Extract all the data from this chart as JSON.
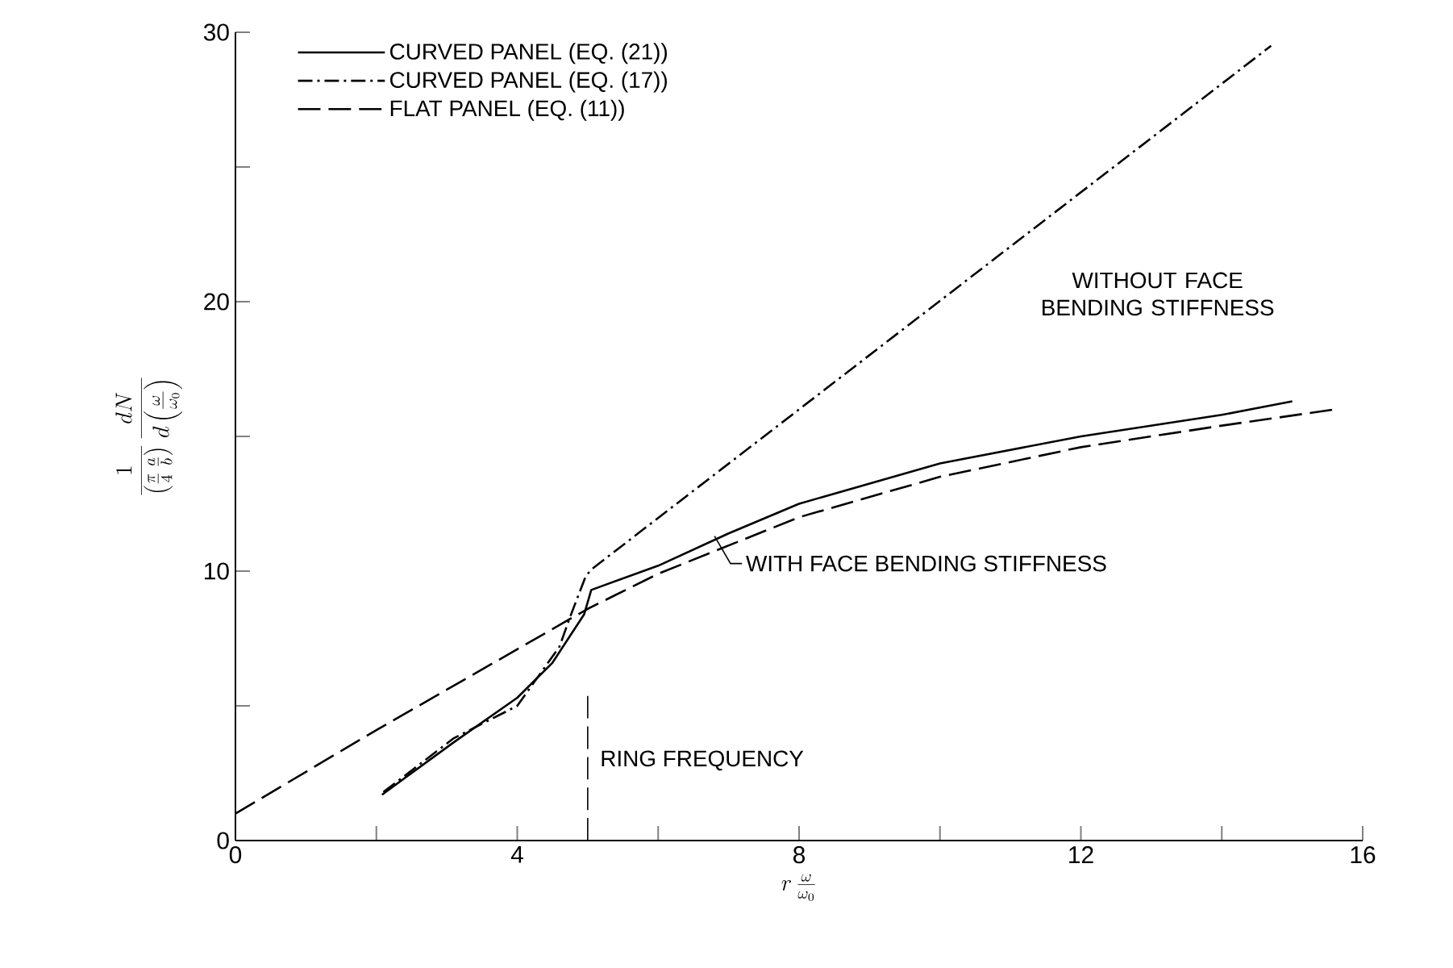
{
  "chart_data": {
    "type": "line",
    "xlabel": "r\\,\\frac{\\omega}{\\omega_0}",
    "ylabel": "\\frac{1}{\\left(\\frac{\\pi}{4}\\,\\frac{a}{b}\\right)}\\,\\frac{dN}{d\\left(\\frac{\\omega}{\\omega_0}\\right)}",
    "xlim": [
      0,
      16
    ],
    "ylim": [
      0,
      30
    ],
    "xticks": [
      0,
      {
        "value": 2,
        "label": null
      },
      4,
      {
        "value": 6,
        "label": null
      },
      8,
      {
        "value": 10,
        "label": null
      },
      12,
      {
        "value": 14,
        "label": null
      },
      16
    ],
    "yticks": [
      0,
      {
        "value": 5,
        "label": null
      },
      10,
      {
        "value": 15,
        "label": null
      },
      20,
      {
        "value": 25,
        "label": null
      },
      30
    ],
    "grid": false,
    "legend": "top left",
    "marker": "none",
    "series": [
      {
        "name": "CURVED PANEL (EQ. (21))",
        "color": "#000000",
        "line_style": "solid",
        "x": [
          2.08,
          3.1,
          4.0,
          4.5,
          4.8,
          4.95,
          5.05,
          6,
          7,
          8,
          10,
          12,
          14,
          15
        ],
        "values": [
          1.7,
          3.65,
          5.3,
          6.6,
          7.8,
          8.4,
          9.3,
          10.2,
          11.4,
          12.5,
          14.0,
          15.0,
          15.8,
          16.3
        ]
      },
      {
        "name": "CURVED PANEL (EQ. (17))",
        "color": "#000000",
        "line_style": "dashdot",
        "x": [
          2.1,
          3.1,
          4.0,
          4.6,
          4.75,
          4.97,
          5.05,
          14.7
        ],
        "values": [
          1.8,
          3.8,
          5.0,
          7.2,
          8.3,
          9.8,
          10.06,
          29.5
        ]
      },
      {
        "name": "FLAT PANEL (EQ. (11))",
        "color": "#000000",
        "line_style": "dashed",
        "x": [
          0,
          2,
          4,
          5,
          6,
          8,
          10,
          12,
          14,
          15.6
        ],
        "values": [
          1,
          4.1,
          7.1,
          8.6,
          9.9,
          12.0,
          13.5,
          14.6,
          15.4,
          16.0
        ]
      }
    ],
    "ref_lines": [
      {
        "axis": "x",
        "value": 5,
        "label": "RING FREQUENCY",
        "line_style": "dashed"
      }
    ],
    "annotations": [
      "WITHOUT FACE BENDING STIFFNESS",
      {
        "text": "WITH FACE BENDING STIFFNESS",
        "x": 6.8,
        "y": 11.3
      }
    ]
  }
}
